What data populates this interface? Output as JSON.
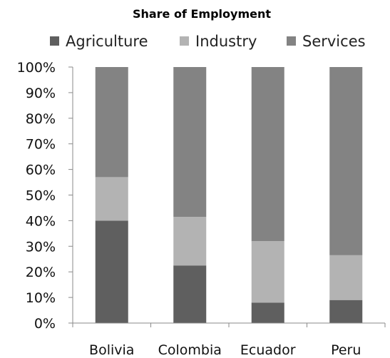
{
  "chart_data": {
    "type": "bar",
    "stacked": true,
    "percent": true,
    "title": "Share of Employment",
    "categories": [
      "Bolivia",
      "Colombia",
      "Ecuador",
      "Peru"
    ],
    "series": [
      {
        "name": "Agriculture",
        "color": "#5f5f5f",
        "values": [
          40,
          22.5,
          8,
          9
        ]
      },
      {
        "name": "Industry",
        "color": "#b3b3b3",
        "values": [
          17,
          19,
          24,
          17.5
        ]
      },
      {
        "name": "Services",
        "color": "#838383",
        "values": [
          43,
          58.5,
          68,
          73.5
        ]
      }
    ],
    "yticks": [
      "0%",
      "10%",
      "20%",
      "30%",
      "40%",
      "50%",
      "60%",
      "70%",
      "80%",
      "90%",
      "100%"
    ],
    "ylim": [
      0,
      100
    ],
    "grid": false,
    "legend_position": "top"
  }
}
